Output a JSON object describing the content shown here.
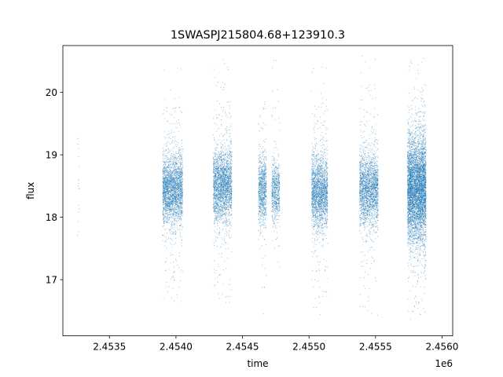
{
  "chart_data": {
    "type": "scatter",
    "title": "1SWASPJ215804.68+123910.3",
    "xlabel": "time",
    "ylabel": "flux",
    "x_offset_label": "1e6",
    "xlim": [
      2453150,
      2456080
    ],
    "ylim": [
      16.1,
      20.75
    ],
    "x_ticks": [
      2453500,
      2454000,
      2454500,
      2455000,
      2455500,
      2456000
    ],
    "x_tick_labels": [
      "2.4535",
      "2.4540",
      "2.4545",
      "2.4550",
      "2.4555",
      "2.4560"
    ],
    "y_ticks": [
      17,
      18,
      19,
      20
    ],
    "y_tick_labels": [
      "17",
      "18",
      "19",
      "20"
    ],
    "grid": false,
    "legend": "none",
    "marker_color": "#1f77b4",
    "series": [
      {
        "clusters": [
          {
            "x_start": 2453260,
            "x_end": 2453275,
            "y_center": 18.4,
            "y_core_sd": 0.45,
            "outlier_low": 17.5,
            "outlier_high": 19.5,
            "n": 18
          },
          {
            "x_start": 2453900,
            "x_end": 2454050,
            "y_center": 18.45,
            "y_core_sd": 0.28,
            "outlier_low": 16.6,
            "outlier_high": 20.5,
            "n": 2600
          },
          {
            "x_start": 2454280,
            "x_end": 2454420,
            "y_center": 18.5,
            "y_core_sd": 0.28,
            "outlier_low": 16.6,
            "outlier_high": 20.6,
            "n": 2400
          },
          {
            "x_start": 2454620,
            "x_end": 2454680,
            "y_center": 18.45,
            "y_core_sd": 0.26,
            "outlier_low": 16.4,
            "outlier_high": 19.9,
            "n": 900
          },
          {
            "x_start": 2454720,
            "x_end": 2454780,
            "y_center": 18.4,
            "y_core_sd": 0.22,
            "outlier_low": 17.2,
            "outlier_high": 20.6,
            "n": 700
          },
          {
            "x_start": 2455020,
            "x_end": 2455140,
            "y_center": 18.4,
            "y_core_sd": 0.28,
            "outlier_low": 16.4,
            "outlier_high": 20.5,
            "n": 2100
          },
          {
            "x_start": 2455380,
            "x_end": 2455520,
            "y_center": 18.45,
            "y_core_sd": 0.28,
            "outlier_low": 16.4,
            "outlier_high": 20.6,
            "n": 2200
          },
          {
            "x_start": 2455740,
            "x_end": 2455880,
            "y_center": 18.45,
            "y_core_sd": 0.42,
            "outlier_low": 16.35,
            "outlier_high": 20.6,
            "n": 5200
          }
        ]
      }
    ]
  }
}
